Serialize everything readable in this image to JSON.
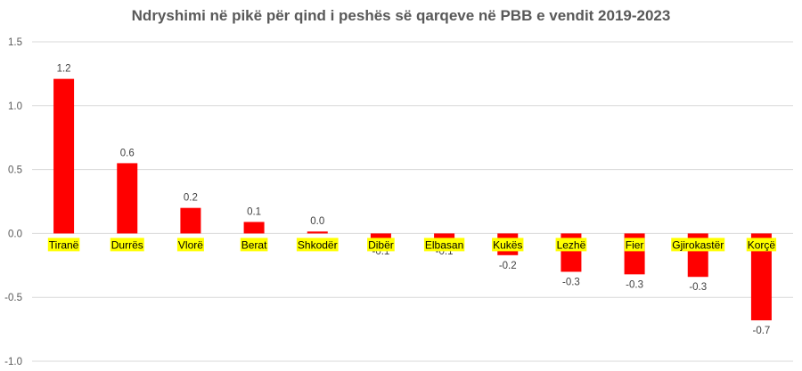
{
  "chart_data": {
    "type": "bar",
    "title": "Ndryshimi në pikë për qind i peshës së qarqeve në PBB e vendit 2019-2023",
    "xlabel": "",
    "ylabel": "",
    "categories": [
      "Tiranë",
      "Durrës",
      "Vlorë",
      "Berat",
      "Shkodër",
      "Dibër",
      "Elbasan",
      "Kukës",
      "Lezhë",
      "Fier",
      "Gjirokastër",
      "Korçë"
    ],
    "series": [
      {
        "values": [
          1.21,
          0.55,
          0.2,
          0.09,
          0.015,
          -0.06,
          -0.06,
          -0.17,
          -0.3,
          -0.32,
          -0.34,
          -0.68
        ],
        "labels": [
          "1.2",
          "0.6",
          "0.2",
          "0.1",
          "0.0",
          "-0.1",
          "-0.1",
          "-0.2",
          "-0.3",
          "-0.3",
          "-0.3",
          "-0.7"
        ]
      }
    ],
    "ylim": [
      -1.0,
      1.5
    ],
    "yticks": [
      "1.5",
      "1.0",
      "0.5",
      "0.0",
      "-0.5",
      "-1.0"
    ],
    "grid": true,
    "legend": "none",
    "colors": {
      "bar": "#ff0000",
      "category_highlight": "#ffff00",
      "grid": "#d9d9d9"
    }
  }
}
